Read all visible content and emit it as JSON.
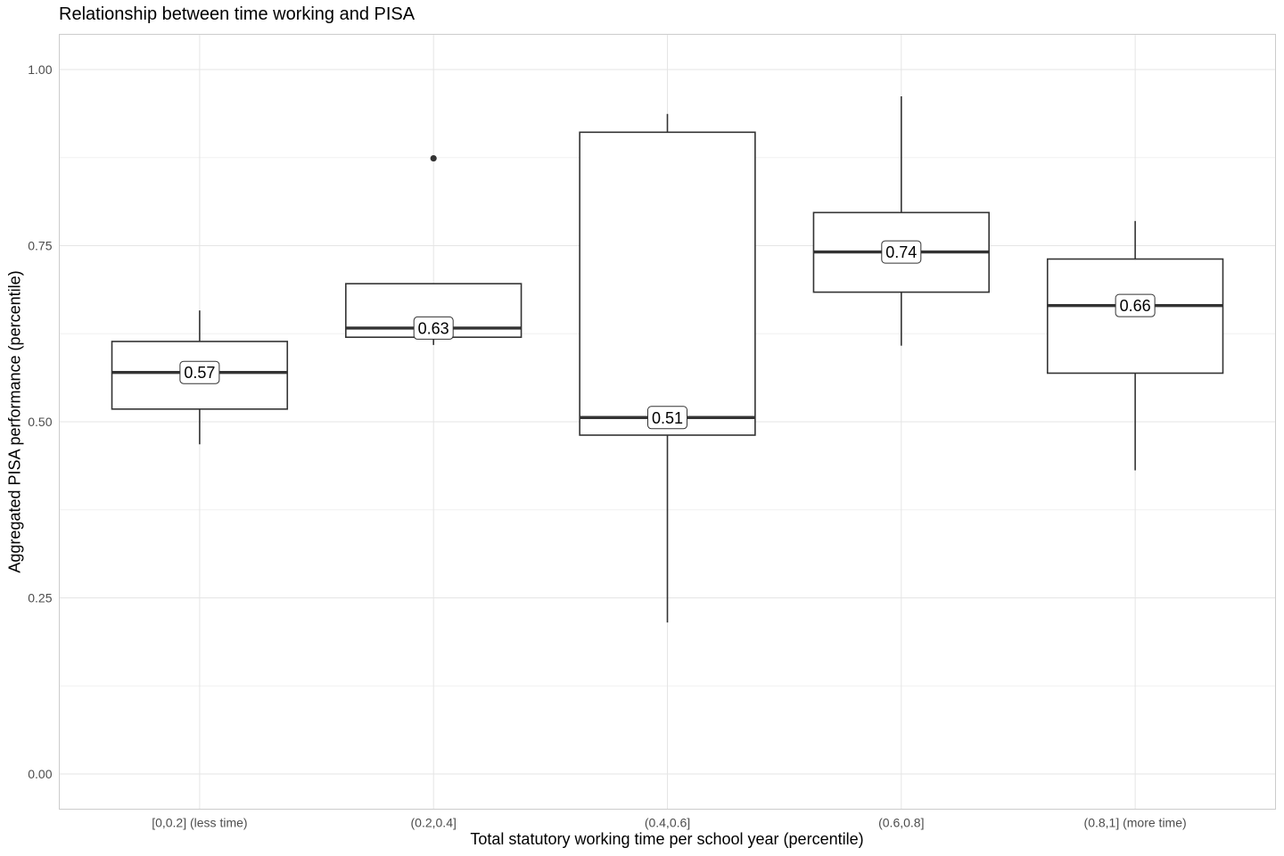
{
  "chart_data": {
    "type": "boxplot",
    "title": "Relationship between time working and PISA",
    "xlabel": "Total statutory working time per school year (percentile)",
    "ylabel": "Aggregated PISA performance (percentile)",
    "ylim": [
      -0.05,
      1.05
    ],
    "y_ticks": [
      0.0,
      0.25,
      0.5,
      0.75,
      1.0
    ],
    "y_tick_labels": [
      "0.00",
      "0.25",
      "0.50",
      "0.75",
      "1.00"
    ],
    "grid": true,
    "categories": [
      "[0,0.2] (less time)",
      "(0.2,0.4]",
      "(0.4,0.6]",
      "(0.6,0.8]",
      "(0.8,1] (more time)"
    ],
    "boxes": [
      {
        "min": 0.468,
        "q1": 0.518,
        "median": 0.57,
        "q3": 0.614,
        "max": 0.658,
        "median_label": "0.57",
        "outliers": []
      },
      {
        "min": 0.609,
        "q1": 0.62,
        "median": 0.633,
        "q3": 0.696,
        "max": 0.696,
        "median_label": "0.63",
        "outliers": [
          0.874
        ]
      },
      {
        "min": 0.215,
        "q1": 0.481,
        "median": 0.506,
        "q3": 0.911,
        "max": 0.937,
        "median_label": "0.51",
        "outliers": []
      },
      {
        "min": 0.608,
        "q1": 0.684,
        "median": 0.741,
        "q3": 0.797,
        "max": 0.962,
        "median_label": "0.74",
        "outliers": []
      },
      {
        "min": 0.431,
        "q1": 0.569,
        "median": 0.665,
        "q3": 0.731,
        "max": 0.785,
        "median_label": "0.66",
        "outliers": []
      }
    ]
  }
}
